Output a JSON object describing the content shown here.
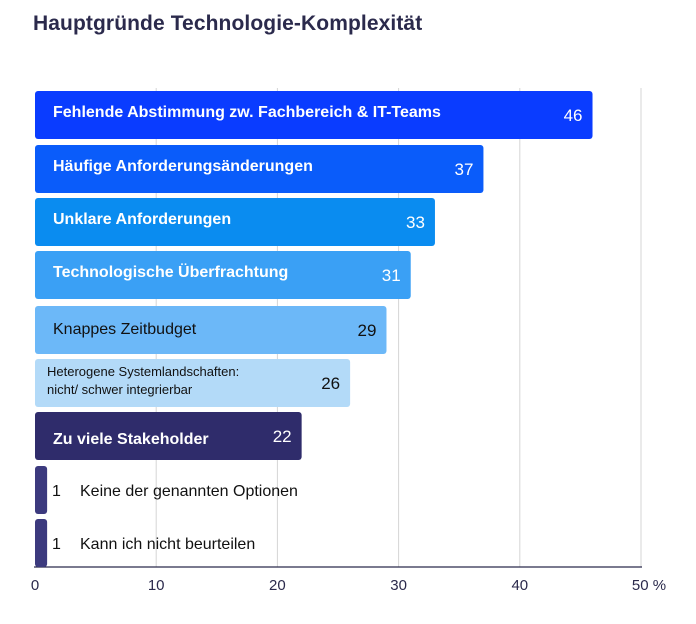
{
  "chart_data": {
    "type": "bar",
    "orientation": "horizontal",
    "title": "Hauptgründe Technologie-Komplexität",
    "xlabel": "",
    "ylabel": "",
    "xlim": [
      0,
      50
    ],
    "x_ticks": [
      "0",
      "10",
      "20",
      "30",
      "40",
      "50 %"
    ],
    "grid": true,
    "categories": [
      "Fehlende Abstimmung zw. Fachbereich & IT-Teams",
      "Häufige Anforderungsänderungen",
      "Unklare Anforderungen",
      "Technologische Überfrachtung",
      "Knappes Zeitbudget",
      "Heterogene Systemlandschaften: nicht/ schwer integrierbar",
      "Zu viele Stakeholder",
      "Keine der genannten Optionen",
      "Kann ich nicht beurteilen"
    ],
    "values": [
      46,
      37,
      33,
      31,
      29,
      26,
      22,
      1,
      1
    ],
    "value_labels": [
      "46",
      "37",
      "33",
      "31",
      "29",
      "26",
      "22",
      "1",
      "1"
    ],
    "colors": [
      "#0a3cff",
      "#0a5cfa",
      "#0a8cf0",
      "#3aa0f5",
      "#6cb8f8",
      "#b3daf8",
      "#2f2c6b",
      "#3c3a7e",
      "#3c3a7e"
    ]
  }
}
